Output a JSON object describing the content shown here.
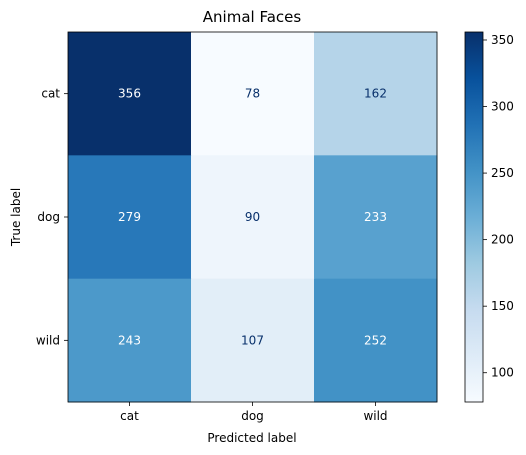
{
  "chart_data": {
    "type": "heatmap",
    "title": "Animal Faces",
    "xlabel": "Predicted label",
    "ylabel": "True label",
    "x_categories": [
      "cat",
      "dog",
      "wild"
    ],
    "y_categories": [
      "cat",
      "dog",
      "wild"
    ],
    "values": [
      [
        356,
        78,
        162
      ],
      [
        279,
        90,
        233
      ],
      [
        243,
        107,
        252
      ]
    ],
    "colormap": "Blues",
    "colorbar": {
      "range": [
        78,
        356
      ],
      "ticks": [
        100,
        150,
        200,
        250,
        300,
        350
      ]
    },
    "text_colors": {
      "light": "#ffffff",
      "dark": "#08306b"
    }
  }
}
